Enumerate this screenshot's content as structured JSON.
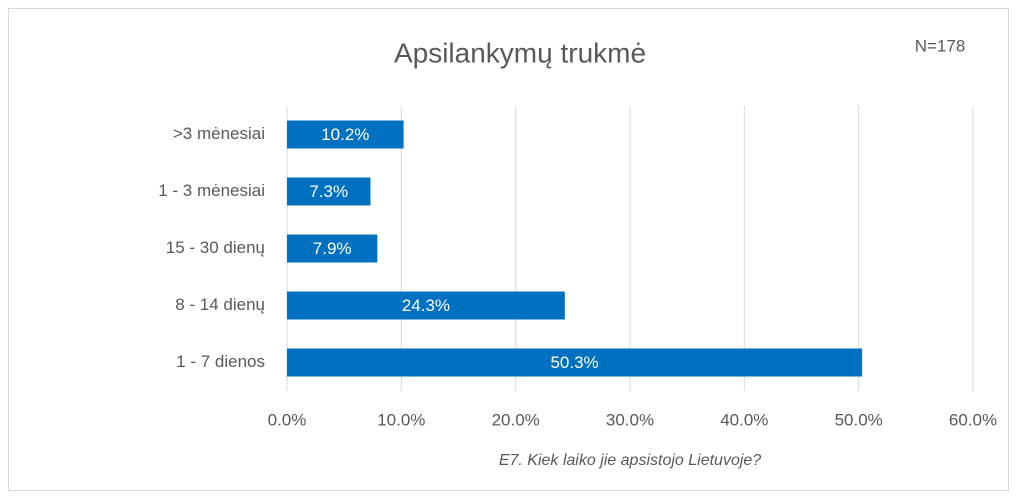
{
  "chart_data": {
    "type": "bar",
    "orientation": "horizontal",
    "title": "Apsilankymų trukmė",
    "annotation": "N=178",
    "xlabel": "E7. Kiek laiko jie apsistojo Lietuvoje?",
    "categories": [
      ">3 mėnesiai",
      "1 - 3 mėnesiai",
      "15 - 30 dienų",
      "8 - 14 dienų",
      "1 - 7 dienos"
    ],
    "values": [
      10.2,
      7.3,
      7.9,
      24.3,
      50.3
    ],
    "value_labels": [
      "10.2%",
      "7.3%",
      "7.9%",
      "24.3%",
      "50.3%"
    ],
    "color": "#0070c0",
    "xlim": [
      0,
      60
    ],
    "xticks": [
      {
        "value": 0,
        "label": "0.0%"
      },
      {
        "value": 10,
        "label": "10.0%"
      },
      {
        "value": 20,
        "label": "20.0%"
      },
      {
        "value": 30,
        "label": "30.0%"
      },
      {
        "value": 40,
        "label": "40.0%"
      },
      {
        "value": 50,
        "label": "50.0%"
      },
      {
        "value": 60,
        "label": "60.0%"
      }
    ],
    "grid": true
  }
}
